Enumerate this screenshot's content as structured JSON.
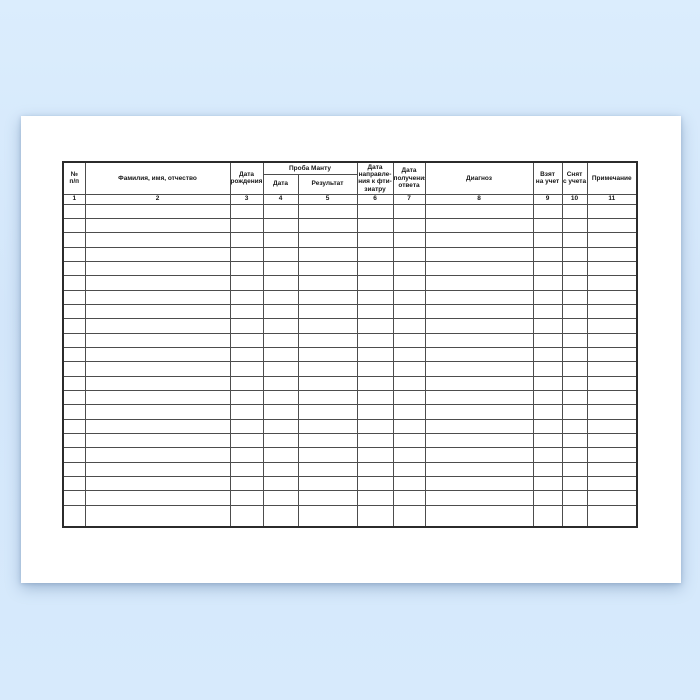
{
  "theme": {
    "background_top": "#dbedfd",
    "background_mid": "#d3e6fa",
    "background_bottom": "#d7eafc",
    "paper": "#ffffff",
    "outer_border": "#2b2b2b",
    "grid_line": "#4d4d4d",
    "text": "#161616"
  },
  "table": {
    "group_header": "Проба Манту",
    "columns": [
      {
        "label": "№\nп/п",
        "number": "1"
      },
      {
        "label": "Фамилия, имя, отчество",
        "number": "2"
      },
      {
        "label": "Дата\nрождения",
        "number": "3"
      },
      {
        "label": "Дата",
        "number": "4"
      },
      {
        "label": "Результат",
        "number": "5"
      },
      {
        "label": "Дата\nнаправле-\nния к фти-\nзиатру",
        "number": "6"
      },
      {
        "label": "Дата\nполучения\nответа",
        "number": "7"
      },
      {
        "label": "Диагноз",
        "number": "8"
      },
      {
        "label": "Взят\nна учет",
        "number": "9"
      },
      {
        "label": "Снят\nс учета",
        "number": "10"
      },
      {
        "label": "Примечание",
        "number": "11"
      }
    ],
    "empty_rows": 22
  }
}
